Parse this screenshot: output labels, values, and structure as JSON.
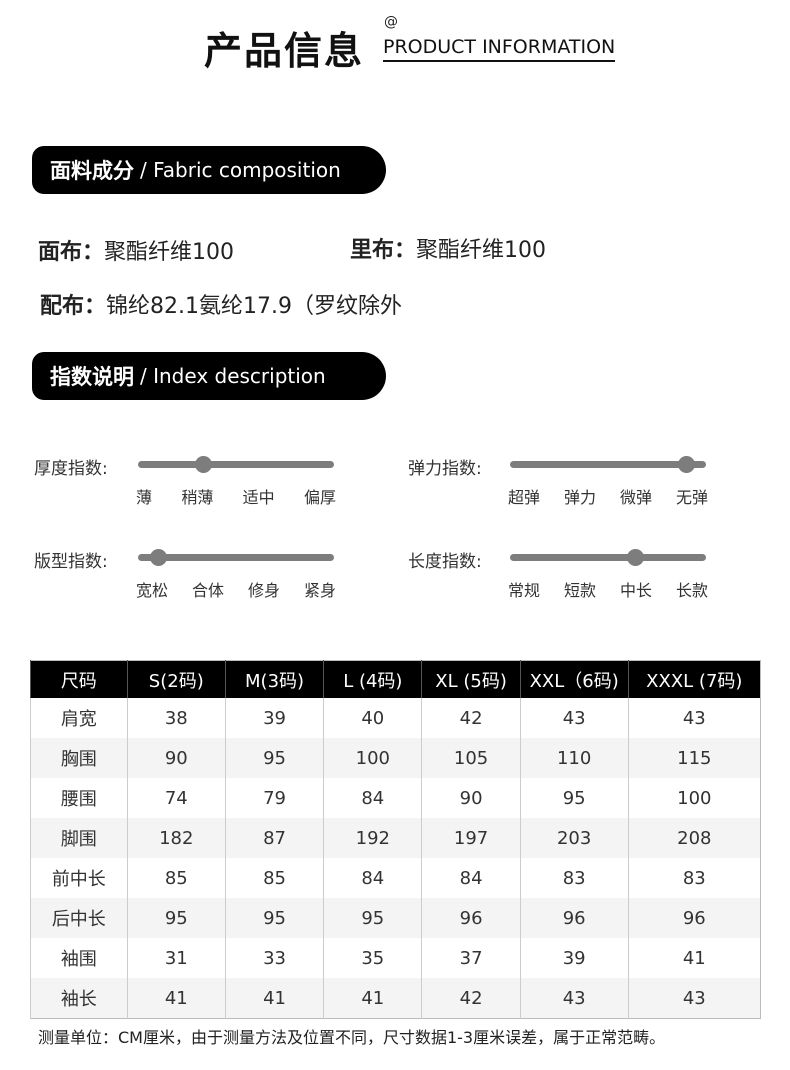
{
  "header": {
    "title_cn": "产品信息",
    "at": "@",
    "title_en": "PRODUCT INFORMATION"
  },
  "fabric": {
    "section_cn": "面料成分",
    "section_en": "/ Fabric composition",
    "items": [
      {
        "label": "面布：",
        "value": "聚酯纤维100"
      },
      {
        "label": "里布：",
        "value": "聚酯纤维100"
      },
      {
        "label": "配布：",
        "value": "锦纶82.1氨纶17.9（罗纹除外"
      }
    ]
  },
  "index": {
    "section_cn": "指数说明",
    "section_en": "/ Index description",
    "sliders": [
      {
        "label": "厚度指数:",
        "ticks": [
          "薄",
          "稍薄",
          "适中",
          "偏厚"
        ],
        "level_percent": 33
      },
      {
        "label": "弹力指数:",
        "ticks": [
          "超弹",
          "弹力",
          "微弹",
          "无弹"
        ],
        "level_percent": 90
      },
      {
        "label": "版型指数:",
        "ticks": [
          "宽松",
          "合体",
          "修身",
          "紧身"
        ],
        "level_percent": 10
      },
      {
        "label": "长度指数:",
        "ticks": [
          "常规",
          "短款",
          "中长",
          "长款"
        ],
        "level_percent": 64
      }
    ],
    "color": "#7d7d7d"
  },
  "size_table": {
    "headers": [
      "尺码",
      "S(2码)",
      "M(3码)",
      "L (4码)",
      "XL (5码)",
      "XXL（6码)",
      "XXXL (7码)"
    ],
    "rows": [
      [
        "肩宽",
        "38",
        "39",
        "40",
        "42",
        "43",
        "43"
      ],
      [
        "胸围",
        "90",
        "95",
        "100",
        "105",
        "110",
        "115"
      ],
      [
        "腰围",
        "74",
        "79",
        "84",
        "90",
        "95",
        "100"
      ],
      [
        "脚围",
        "182",
        "87",
        "192",
        "197",
        "203",
        "208"
      ],
      [
        "前中长",
        "85",
        "85",
        "84",
        "84",
        "83",
        "83"
      ],
      [
        "后中长",
        "95",
        "95",
        "95",
        "96",
        "96",
        "96"
      ],
      [
        "袖围",
        "31",
        "33",
        "35",
        "37",
        "39",
        "41"
      ],
      [
        "袖长",
        "41",
        "41",
        "41",
        "42",
        "43",
        "43"
      ]
    ]
  },
  "note": "测量单位：CM厘米，由于测量方法及位置不同，尺寸数据1-3厘米误差，属于正常范畴。"
}
